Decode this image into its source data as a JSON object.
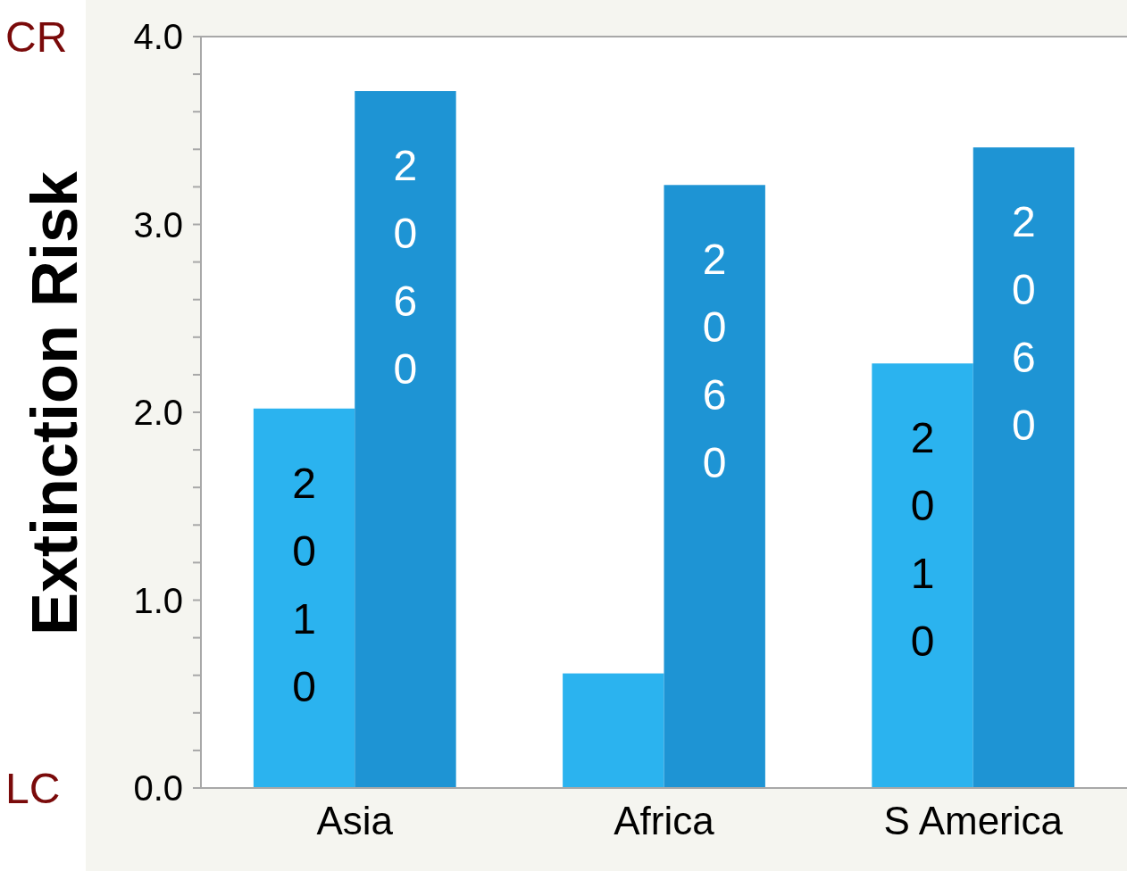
{
  "chart_data": {
    "type": "bar",
    "ylabel": "Extinction Risk",
    "categories": [
      "Asia",
      "Africa",
      "S America"
    ],
    "series": [
      {
        "name": "2010",
        "color": "#2bb3ef",
        "values": [
          2.02,
          0.61,
          2.26
        ]
      },
      {
        "name": "2060",
        "color": "#1e94d4",
        "values": [
          3.71,
          3.21,
          3.41
        ]
      }
    ],
    "ylim": [
      0,
      4
    ],
    "yticks": [
      {
        "value": 0,
        "label": "0.0"
      },
      {
        "value": 0.2,
        "label": null
      },
      {
        "value": 0.4,
        "label": null
      },
      {
        "value": 0.6,
        "label": null
      },
      {
        "value": 0.8,
        "label": null
      },
      {
        "value": 1,
        "label": "1.0"
      },
      {
        "value": 1.2,
        "label": null
      },
      {
        "value": 1.4,
        "label": null
      },
      {
        "value": 1.6,
        "label": null
      },
      {
        "value": 1.8,
        "label": null
      },
      {
        "value": 2,
        "label": "2.0"
      },
      {
        "value": 2.2,
        "label": null
      },
      {
        "value": 2.4,
        "label": null
      },
      {
        "value": 2.6,
        "label": null
      },
      {
        "value": 2.8,
        "label": null
      },
      {
        "value": 3,
        "label": "3.0"
      },
      {
        "value": 3.2,
        "label": null
      },
      {
        "value": 3.4,
        "label": null
      },
      {
        "value": 3.6,
        "label": null
      },
      {
        "value": 3.8,
        "label": null
      },
      {
        "value": 4,
        "label": "4.0"
      }
    ],
    "annotations": [
      "CR",
      "LC"
    ],
    "grid": false,
    "legend": false
  }
}
